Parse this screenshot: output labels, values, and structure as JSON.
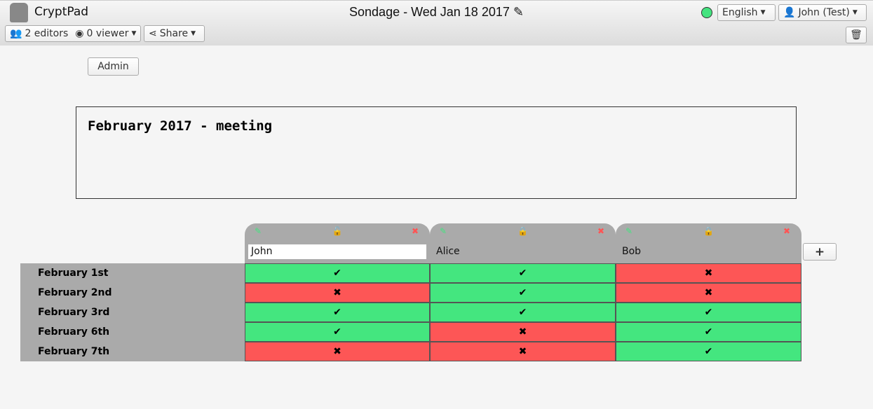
{
  "app": {
    "name": "CryptPad",
    "title": "Sondage - Wed Jan 18 2017"
  },
  "toolbar": {
    "editors": "2 editors",
    "viewers": "0 viewer",
    "share": "Share",
    "language": "English",
    "user": "John (Test)",
    "status_color": "#44e37f"
  },
  "admin_label": "Admin",
  "poll_title": "February 2017 - meeting",
  "colors": {
    "yes": "#44e67f",
    "no": "#fd5656"
  },
  "participants": [
    {
      "name": "John",
      "locked": false,
      "editing": true
    },
    {
      "name": "Alice",
      "locked": true,
      "editing": false
    },
    {
      "name": "Bob",
      "locked": true,
      "editing": false
    }
  ],
  "options": [
    "February 1st",
    "February 2nd",
    "February 3rd",
    "February 6th",
    "February 7th"
  ],
  "votes": [
    [
      1,
      1,
      0
    ],
    [
      0,
      1,
      0
    ],
    [
      1,
      1,
      1
    ],
    [
      1,
      0,
      1
    ],
    [
      0,
      0,
      1
    ]
  ],
  "glyphs": {
    "yes": "✔",
    "no": "✖",
    "add": "+"
  }
}
